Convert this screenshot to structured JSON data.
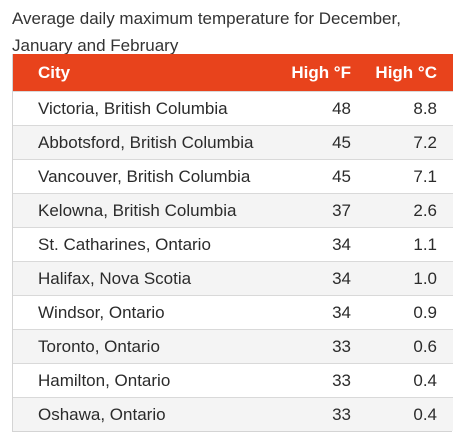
{
  "caption": "Average daily maximum temperature for December, January and February",
  "colors": {
    "header_bg": "#e8431c",
    "header_text": "#ffffff",
    "row_alt_bg": "#f4f4f4"
  },
  "table": {
    "headers": [
      "City",
      "High °F",
      "High °C"
    ],
    "rows": [
      [
        "Victoria, British Columbia",
        "48",
        "8.8"
      ],
      [
        "Abbotsford, British Columbia",
        "45",
        "7.2"
      ],
      [
        "Vancouver, British Columbia",
        "45",
        "7.1"
      ],
      [
        "Kelowna, British Columbia",
        "37",
        "2.6"
      ],
      [
        "St. Catharines, Ontario",
        "34",
        "1.1"
      ],
      [
        "Halifax, Nova Scotia",
        "34",
        "1.0"
      ],
      [
        "Windsor, Ontario",
        "34",
        "0.9"
      ],
      [
        "Toronto, Ontario",
        "33",
        "0.6"
      ],
      [
        "Hamilton, Ontario",
        "33",
        "0.4"
      ],
      [
        "Oshawa, Ontario",
        "33",
        "0.4"
      ]
    ]
  }
}
